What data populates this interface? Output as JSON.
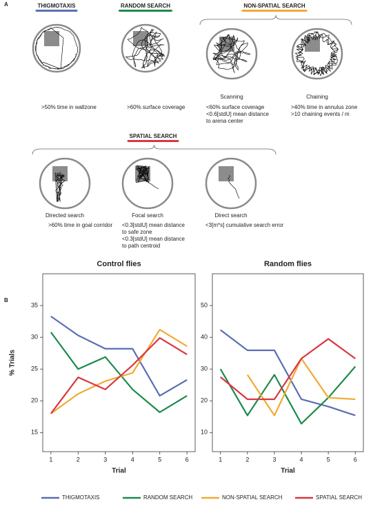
{
  "panel_a": {
    "label": "A",
    "top_row": [
      {
        "heading": "THIGMOTAXIS",
        "criteria": [
          ">50% time in wallzone"
        ]
      },
      {
        "heading": "RANDOM SEARCH",
        "criteria": [
          ">60% surface coverage"
        ]
      }
    ],
    "non_spatial": {
      "heading": "NON-SPATIAL SEARCH",
      "strategies": [
        {
          "name": "Scanning",
          "criteria": [
            "<60% surface coverage",
            "<0.6[stdU] mean distance",
            "to arena center"
          ]
        },
        {
          "name": "Chaining",
          "criteria": [
            ">40% time in annulus zone",
            ">10 chaining events / m"
          ]
        }
      ]
    },
    "spatial": {
      "heading": "SPATIAL SEARCH",
      "strategies": [
        {
          "name": "Directed search",
          "criteria": [
            ">60% time in goal corridor"
          ]
        },
        {
          "name": "Focal search",
          "criteria": [
            "<0.3[stdU] mean distance",
            "to safe zone",
            "<0.3[stdU] mean distance",
            "to path centroid"
          ]
        },
        {
          "name": "Direct search",
          "criteria": [
            "<3[m*s] cumulative search error"
          ]
        }
      ]
    }
  },
  "panel_b": {
    "label": "B"
  },
  "chart_data": [
    {
      "type": "line",
      "title": "Control flies",
      "xlabel": "Trial",
      "ylabel": "% Trials",
      "x": [
        1,
        2,
        3,
        4,
        5,
        6
      ],
      "xlim": [
        0.7,
        6.3
      ],
      "xticks": [
        1,
        2,
        3,
        4,
        5,
        6
      ],
      "ylim": [
        12,
        40
      ],
      "yticks": [
        15,
        20,
        25,
        30,
        35
      ],
      "series": [
        {
          "name": "THIGMOTAXIS",
          "color": "#5b6db2",
          "values": [
            33.3,
            30.3,
            28.2,
            28.2,
            20.8,
            23.3
          ]
        },
        {
          "name": "RANDOM SEARCH",
          "color": "#1b8a4b",
          "values": [
            30.8,
            25.0,
            26.9,
            21.8,
            18.2,
            20.8
          ]
        },
        {
          "name": "NON-SPATIAL SEARCH",
          "color": "#f2a932",
          "values": [
            18.0,
            21.1,
            23.1,
            24.4,
            31.2,
            28.6
          ]
        },
        {
          "name": "SPATIAL SEARCH",
          "color": "#da3640",
          "values": [
            18.0,
            23.7,
            21.8,
            25.6,
            29.9,
            27.3
          ]
        }
      ]
    },
    {
      "type": "line",
      "title": "Random flies",
      "xlabel": "Trial",
      "x": [
        1,
        2,
        3,
        4,
        5,
        6
      ],
      "xlim": [
        0.7,
        6.3
      ],
      "xticks": [
        1,
        2,
        3,
        4,
        5,
        6
      ],
      "ylim": [
        4,
        60
      ],
      "yticks": [
        10,
        20,
        30,
        40,
        50
      ],
      "series": [
        {
          "name": "THIGMOTAXIS",
          "color": "#5b6db2",
          "values": [
            42.3,
            35.9,
            35.9,
            20.5,
            18.2,
            15.4
          ]
        },
        {
          "name": "RANDOM SEARCH",
          "color": "#1b8a4b",
          "values": [
            30.0,
            15.4,
            28.2,
            12.8,
            21.0,
            30.8
          ]
        },
        {
          "name": "NON-SPATIAL SEARCH",
          "color": "#f2a932",
          "values": [
            null,
            28.2,
            15.4,
            33.3,
            21.0,
            20.5
          ]
        },
        {
          "name": "SPATIAL SEARCH",
          "color": "#da3640",
          "values": [
            27.5,
            20.5,
            20.5,
            33.3,
            39.5,
            33.3
          ]
        }
      ]
    }
  ]
}
